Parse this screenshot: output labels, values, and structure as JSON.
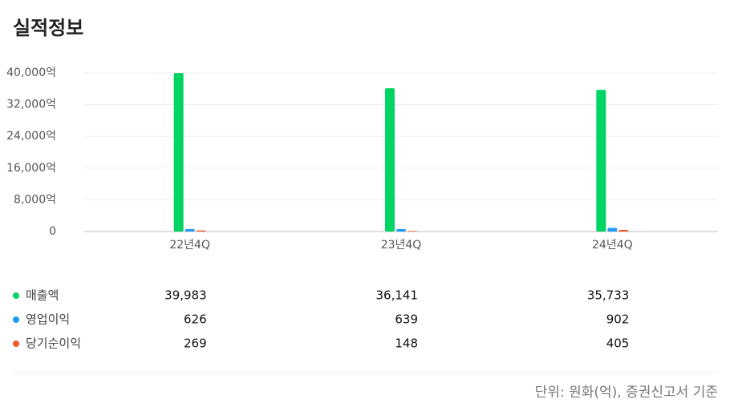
{
  "chart_data": {
    "type": "bar",
    "title": "실적정보",
    "categories": [
      "22년4Q",
      "23년4Q",
      "24년4Q"
    ],
    "series": [
      {
        "name": "매출액",
        "color": "#00d564",
        "values": [
          39983,
          36141,
          35733
        ],
        "value_labels": [
          "39,983",
          "36,141",
          "35,733"
        ]
      },
      {
        "name": "영업이익",
        "color": "#1e9bf0",
        "values": [
          626,
          639,
          902
        ],
        "value_labels": [
          "626",
          "639",
          "902"
        ]
      },
      {
        "name": "당기순이익",
        "color": "#f05a28",
        "values": [
          269,
          148,
          405
        ],
        "value_labels": [
          "269",
          "148",
          "405"
        ]
      }
    ],
    "ylim": [
      0,
      40000
    ],
    "yticks": [
      0,
      {
        "value": 8000,
        "label": "8,000억"
      },
      {
        "value": 16000,
        "label": "16,000억"
      },
      {
        "value": 24000,
        "label": "24,000억"
      },
      {
        "value": 32000,
        "label": "32,000억"
      },
      {
        "value": 40000,
        "label": "40,000억"
      }
    ],
    "grid": true,
    "footnote": "단위: 원화(억), 증권신고서 기준"
  }
}
